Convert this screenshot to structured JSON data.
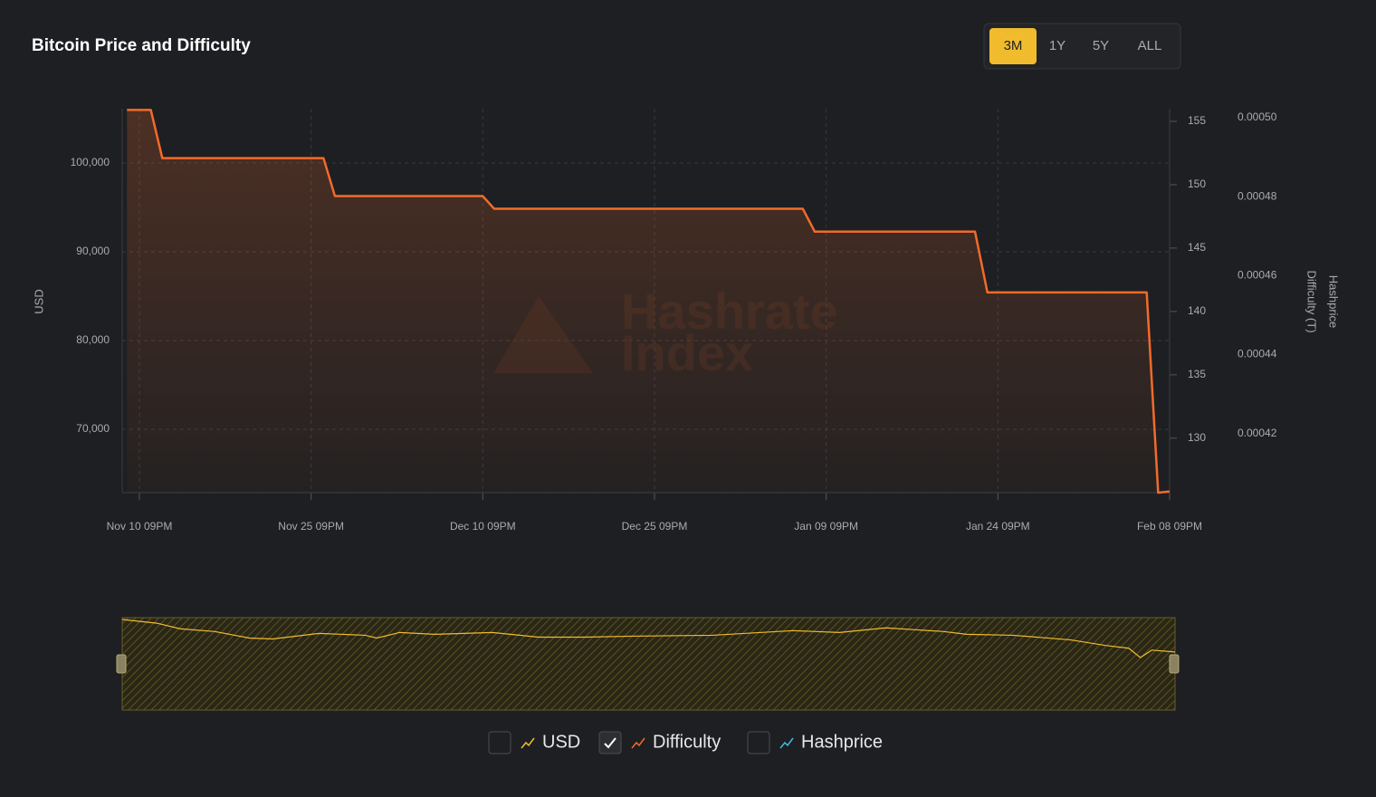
{
  "chart_data": {
    "type": "line",
    "title": "Bitcoin Price and Difficulty",
    "range_buttons": [
      "3M",
      "1Y",
      "5Y",
      "ALL"
    ],
    "selected_range": "3M",
    "watermark": [
      "Hashrate",
      "Index"
    ],
    "xlim": [
      "Nov 09 09AM",
      "Feb 08 09PM"
    ],
    "xticks": [
      "Nov 10 09PM",
      "Nov 25 09PM",
      "Dec 10 09PM",
      "Dec 25 09PM",
      "Jan 09 09PM",
      "Jan 24 09PM",
      "Feb 08 09PM"
    ],
    "ylabel": "USD",
    "ylim": [
      62857,
      106122
    ],
    "yticks": [
      {
        "value": 70000,
        "label": "70,000"
      },
      {
        "value": 80000,
        "label": "80,000"
      },
      {
        "value": 90000,
        "label": "90,000"
      },
      {
        "value": 100000,
        "label": "100,000"
      }
    ],
    "y2label": "Difficulty (T)",
    "y2lim": [
      125.7,
      156
    ],
    "y2ticks": [
      130,
      135,
      140,
      145,
      150,
      155
    ],
    "y3label": "Hashprice",
    "y3lim": [
      0.000405,
      0.0005023
    ],
    "y3ticks": [
      0.00042,
      0.00044,
      0.00046,
      0.00048,
      {
        "value": 0.0005,
        "label": "0.00050"
      }
    ],
    "grid": true,
    "navigator": {
      "series": 0
    },
    "series": [
      {
        "name": "USD",
        "color": "#f0bc2e",
        "visible": false,
        "x": [
          "Nov 09 09PM",
          "Nov 12 09PM",
          "Nov 14 09PM",
          "Nov 17 09PM",
          "Nov 20 09PM",
          "Nov 22 09PM",
          "Nov 26 09PM",
          "Nov 30 09PM",
          "Dec 01 09PM",
          "Dec 03 09PM",
          "Dec 06 09PM",
          "Dec 11 09PM",
          "Dec 15 09PM",
          "Dec 19 09PM",
          "Dec 23 09PM",
          "Dec 30 09PM",
          "Jan 06 09PM",
          "Jan 10 09PM",
          "Jan 14 09PM",
          "Jan 19 09PM",
          "Jan 21 09PM",
          "Jan 25 09PM",
          "Jan 30 09PM",
          "Feb 02 09PM",
          "Feb 04 09PM",
          "Feb 05 09PM",
          "Feb 06 09PM",
          "Feb 08 09PM"
        ],
        "values": [
          106000,
          101800,
          95500,
          92350,
          85000,
          84000,
          90250,
          88150,
          85000,
          91300,
          89200,
          91300,
          86050,
          86050,
          87100,
          88150,
          93400,
          91300,
          96550,
          92350,
          89200,
          88150,
          82900,
          76600,
          73450,
          62950,
          71350,
          69250
        ]
      },
      {
        "name": "Difficulty",
        "color": "#f26b2a",
        "visible": true,
        "axis": "y2",
        "x": [
          "Nov 09 07PM",
          "Nov 11 09PM",
          "Nov 12 09PM",
          "Nov 26 11PM",
          "Nov 27 11PM",
          "Dec 10 09PM",
          "Dec 11 09PM",
          "Jan 07 08PM",
          "Jan 08 09PM",
          "Jan 22 09PM",
          "Jan 23 11PM",
          "Feb 06 09PM",
          "Feb 07 09PM",
          "Feb 08 09PM"
        ],
        "values": [
          155.9,
          155.9,
          152.1,
          152.1,
          149.1,
          149.1,
          148.1,
          148.1,
          146.3,
          146.3,
          141.5,
          141.5,
          125.7,
          125.8
        ]
      },
      {
        "name": "Hashprice",
        "color": "#3fb8e8",
        "visible": false,
        "axis": "y3"
      }
    ]
  }
}
